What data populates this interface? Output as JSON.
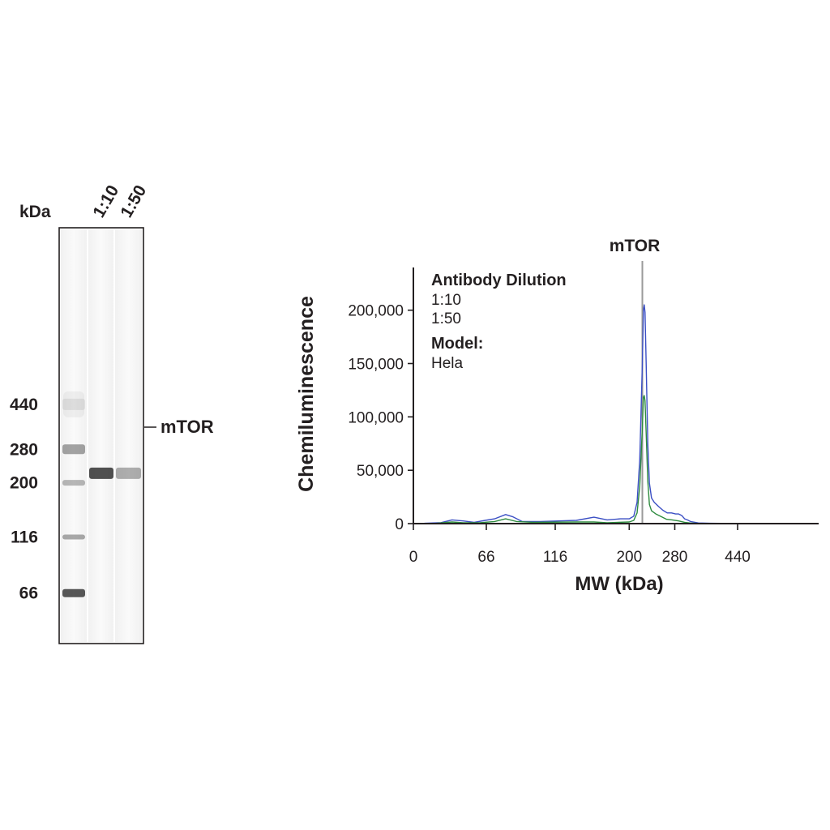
{
  "gel": {
    "kda_label": "kDa",
    "lane_labels": [
      "1:10",
      "1:50"
    ],
    "ladder_markers": [
      {
        "label": "440",
        "kda": 440
      },
      {
        "label": "280",
        "kda": 280
      },
      {
        "label": "200",
        "kda": 200
      },
      {
        "label": "116",
        "kda": 116
      },
      {
        "label": "66",
        "kda": 66
      }
    ],
    "band_label": "mTOR",
    "band_kda": 220,
    "band_intensity": {
      "1:10": 1.0,
      "1:50": 0.45
    }
  },
  "chart_data": {
    "type": "line",
    "title": "",
    "peak_label": "mTOR",
    "peak_x": 220,
    "xlabel": "MW (kDa)",
    "ylabel": "Chemiluminescence",
    "x_ticks": [
      {
        "label": "0",
        "pos": 0
      },
      {
        "label": "66",
        "pos": 66
      },
      {
        "label": "116",
        "pos": 116
      },
      {
        "label": "200",
        "pos": 200
      },
      {
        "label": "280",
        "pos": 280
      },
      {
        "label": "440",
        "pos": 440
      }
    ],
    "x_scale": {
      "kda": [
        0,
        66,
        116,
        200,
        220,
        280,
        440,
        700
      ],
      "axis_pos": [
        0,
        72,
        140,
        213,
        226,
        258,
        320,
        400
      ]
    },
    "y_ticks": [
      0,
      50000,
      100000,
      150000,
      200000
    ],
    "y_tick_labels": [
      "0",
      "50,000",
      "100,000",
      "150,000",
      "200,000"
    ],
    "ylim": [
      0,
      240000
    ],
    "legend_title": "Antibody Dilution",
    "model_label": "Model:",
    "model_value": "Hela",
    "series": [
      {
        "name": "1:10",
        "color": "#3b4fc4",
        "points": [
          [
            0,
            200
          ],
          [
            10,
            300
          ],
          [
            25,
            900
          ],
          [
            35,
            3500
          ],
          [
            45,
            2500
          ],
          [
            55,
            1200
          ],
          [
            65,
            3000
          ],
          [
            72,
            4500
          ],
          [
            80,
            8500
          ],
          [
            85,
            6500
          ],
          [
            92,
            2000
          ],
          [
            105,
            2000
          ],
          [
            120,
            2500
          ],
          [
            140,
            3000
          ],
          [
            160,
            6000
          ],
          [
            175,
            3500
          ],
          [
            190,
            4500
          ],
          [
            200,
            4500
          ],
          [
            207,
            7000
          ],
          [
            212,
            20000
          ],
          [
            216,
            60000
          ],
          [
            220,
            150000
          ],
          [
            222,
            200000
          ],
          [
            223.5,
            205000
          ],
          [
            225,
            198000
          ],
          [
            227,
            150000
          ],
          [
            230,
            75000
          ],
          [
            233,
            38000
          ],
          [
            237,
            24000
          ],
          [
            242,
            20000
          ],
          [
            250,
            16000
          ],
          [
            258,
            12500
          ],
          [
            266,
            10000
          ],
          [
            274,
            10000
          ],
          [
            282,
            9000
          ],
          [
            290,
            9000
          ],
          [
            298,
            7500
          ],
          [
            305,
            4500
          ],
          [
            312,
            3500
          ],
          [
            320,
            2000
          ],
          [
            340,
            600
          ],
          [
            370,
            300
          ],
          [
            400,
            200
          ]
        ]
      },
      {
        "name": "1:50",
        "color": "#2e8b3f",
        "points": [
          [
            0,
            100
          ],
          [
            20,
            200
          ],
          [
            35,
            1500
          ],
          [
            45,
            800
          ],
          [
            60,
            800
          ],
          [
            72,
            2000
          ],
          [
            80,
            4500
          ],
          [
            88,
            2000
          ],
          [
            100,
            1200
          ],
          [
            140,
            1500
          ],
          [
            160,
            1500
          ],
          [
            175,
            800
          ],
          [
            200,
            1500
          ],
          [
            207,
            3000
          ],
          [
            212,
            10000
          ],
          [
            216,
            35000
          ],
          [
            220,
            90000
          ],
          [
            222,
            118000
          ],
          [
            223.5,
            120000
          ],
          [
            225,
            115000
          ],
          [
            227,
            85000
          ],
          [
            230,
            40000
          ],
          [
            233,
            18000
          ],
          [
            237,
            12000
          ],
          [
            245,
            9000
          ],
          [
            255,
            6500
          ],
          [
            265,
            4000
          ],
          [
            275,
            3500
          ],
          [
            290,
            2500
          ],
          [
            305,
            1200
          ],
          [
            320,
            500
          ],
          [
            340,
            200
          ],
          [
            400,
            100
          ]
        ]
      }
    ]
  }
}
